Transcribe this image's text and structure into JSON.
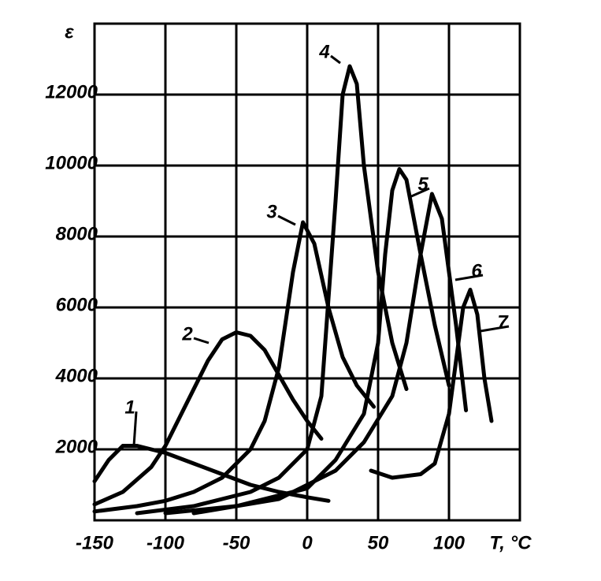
{
  "chart_data": {
    "type": "line",
    "y_label": "ε",
    "x_label": "T, °C",
    "xlim": [
      -150,
      150
    ],
    "xticks": [
      -150,
      -100,
      -50,
      0,
      50,
      100
    ],
    "ylim": [
      0,
      14000
    ],
    "yticks": [
      2000,
      4000,
      6000,
      8000,
      10000,
      12000
    ],
    "grid": true,
    "series": [
      {
        "name": "1",
        "color": "#000000",
        "x": [
          -150,
          -140,
          -130,
          -120,
          -100,
          -80,
          -60,
          -40,
          -20,
          0,
          15
        ],
        "values": [
          1100,
          1700,
          2100,
          2100,
          1900,
          1600,
          1300,
          1000,
          800,
          650,
          550
        ]
      },
      {
        "name": "2",
        "color": "#000000",
        "x": [
          -150,
          -130,
          -110,
          -100,
          -90,
          -80,
          -70,
          -60,
          -50,
          -40,
          -30,
          -20,
          -10,
          0,
          10
        ],
        "values": [
          450,
          800,
          1500,
          2100,
          2900,
          3700,
          4500,
          5100,
          5300,
          5200,
          4800,
          4100,
          3400,
          2800,
          2300
        ]
      },
      {
        "name": "3",
        "color": "#000000",
        "x": [
          -150,
          -120,
          -100,
          -80,
          -60,
          -40,
          -30,
          -20,
          -10,
          -3,
          5,
          15,
          25,
          35,
          47
        ],
        "values": [
          250,
          400,
          550,
          800,
          1200,
          2000,
          2800,
          4300,
          7000,
          8400,
          7800,
          6000,
          4600,
          3800,
          3200
        ]
      },
      {
        "name": "4",
        "color": "#000000",
        "x": [
          -120,
          -80,
          -40,
          -20,
          0,
          10,
          20,
          25,
          30,
          35,
          40,
          50,
          60,
          70
        ],
        "values": [
          200,
          400,
          800,
          1200,
          2000,
          3500,
          9000,
          12000,
          12800,
          12300,
          10000,
          7000,
          5000,
          3700
        ]
      },
      {
        "name": "5",
        "color": "#000000",
        "x": [
          -100,
          -50,
          0,
          20,
          40,
          50,
          55,
          60,
          65,
          70,
          80,
          90,
          100
        ],
        "values": [
          200,
          400,
          900,
          1700,
          3000,
          5000,
          7500,
          9300,
          9900,
          9600,
          7500,
          5500,
          3800
        ]
      },
      {
        "name": "6",
        "color": "#000000",
        "x": [
          -80,
          -20,
          20,
          40,
          60,
          70,
          80,
          88,
          95,
          105,
          112
        ],
        "values": [
          200,
          600,
          1400,
          2200,
          3500,
          5000,
          7500,
          9200,
          8500,
          5500,
          3100
        ]
      },
      {
        "name": "7",
        "color": "#000000",
        "x": [
          45,
          60,
          80,
          90,
          100,
          105,
          110,
          115,
          120,
          125,
          130
        ],
        "values": [
          1400,
          1200,
          1300,
          1600,
          3000,
          4500,
          6000,
          6500,
          5800,
          4000,
          2800
        ]
      }
    ]
  }
}
